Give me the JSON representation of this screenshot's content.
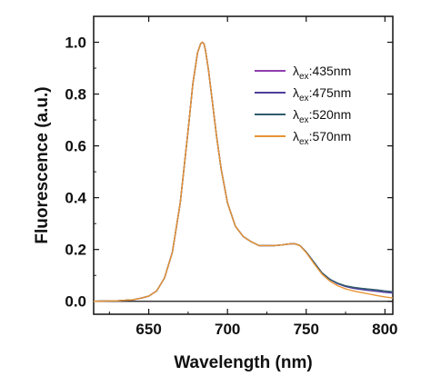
{
  "chart_data": {
    "type": "line",
    "xlabel": "Wavelength (nm)",
    "ylabel": "Fluorescence (a.u.)",
    "xlim": [
      615,
      805
    ],
    "ylim": [
      -0.05,
      1.1
    ],
    "x_ticks": [
      650,
      700,
      750,
      800
    ],
    "y_ticks": [
      0.0,
      0.2,
      0.4,
      0.6,
      0.8,
      1.0
    ],
    "x_tick_labels": [
      "650",
      "700",
      "750",
      "800"
    ],
    "y_tick_labels": [
      "0.0",
      "0.2",
      "0.4",
      "0.6",
      "0.8",
      "1.0"
    ],
    "legend_position": "top-right",
    "baseline": 0,
    "x": [
      615,
      630,
      640,
      645,
      650,
      655,
      660,
      665,
      670,
      675,
      678,
      681,
      683,
      684,
      685,
      686,
      688,
      690,
      693,
      696,
      700,
      705,
      710,
      715,
      720,
      725,
      730,
      735,
      740,
      743,
      746,
      750,
      755,
      760,
      765,
      770,
      775,
      780,
      785,
      790,
      795,
      800,
      805
    ],
    "series": [
      {
        "name_prefix": "λ",
        "name_sub": "ex",
        "name_suffix": ":435nm",
        "color": "#8e3fae",
        "values": [
          0.0,
          0.002,
          0.006,
          0.012,
          0.02,
          0.04,
          0.09,
          0.19,
          0.38,
          0.66,
          0.84,
          0.96,
          0.995,
          1.0,
          0.995,
          0.97,
          0.89,
          0.79,
          0.64,
          0.51,
          0.38,
          0.29,
          0.25,
          0.23,
          0.215,
          0.215,
          0.215,
          0.218,
          0.222,
          0.222,
          0.215,
          0.19,
          0.15,
          0.11,
          0.085,
          0.068,
          0.057,
          0.05,
          0.046,
          0.042,
          0.039,
          0.035,
          0.032
        ]
      },
      {
        "name_prefix": "λ",
        "name_sub": "ex",
        "name_suffix": ":475nm",
        "color": "#4b3f9c",
        "values": [
          0.0,
          0.002,
          0.006,
          0.012,
          0.02,
          0.04,
          0.09,
          0.19,
          0.38,
          0.66,
          0.84,
          0.96,
          0.995,
          1.0,
          0.995,
          0.97,
          0.89,
          0.79,
          0.64,
          0.51,
          0.38,
          0.29,
          0.25,
          0.23,
          0.215,
          0.215,
          0.215,
          0.218,
          0.222,
          0.222,
          0.215,
          0.19,
          0.15,
          0.11,
          0.085,
          0.068,
          0.057,
          0.05,
          0.046,
          0.042,
          0.039,
          0.035,
          0.032
        ]
      },
      {
        "name_prefix": "λ",
        "name_sub": "ex",
        "name_suffix": ":520nm",
        "color": "#2f5d6b",
        "values": [
          0.0,
          0.002,
          0.006,
          0.012,
          0.02,
          0.04,
          0.09,
          0.19,
          0.38,
          0.66,
          0.84,
          0.96,
          0.995,
          1.0,
          0.995,
          0.97,
          0.89,
          0.79,
          0.64,
          0.51,
          0.38,
          0.29,
          0.25,
          0.23,
          0.215,
          0.215,
          0.215,
          0.218,
          0.222,
          0.222,
          0.215,
          0.19,
          0.15,
          0.11,
          0.085,
          0.07,
          0.06,
          0.054,
          0.05,
          0.047,
          0.044,
          0.04,
          0.037
        ]
      },
      {
        "name_prefix": "λ",
        "name_sub": "ex",
        "name_suffix": ":570nm",
        "color": "#e89433",
        "values": [
          0.0,
          0.002,
          0.006,
          0.012,
          0.02,
          0.04,
          0.09,
          0.19,
          0.38,
          0.66,
          0.84,
          0.96,
          0.995,
          1.0,
          0.995,
          0.97,
          0.89,
          0.79,
          0.64,
          0.51,
          0.38,
          0.29,
          0.25,
          0.23,
          0.215,
          0.215,
          0.215,
          0.218,
          0.222,
          0.222,
          0.215,
          0.188,
          0.145,
          0.105,
          0.078,
          0.06,
          0.048,
          0.04,
          0.034,
          0.028,
          0.022,
          0.017,
          0.013
        ]
      }
    ]
  }
}
